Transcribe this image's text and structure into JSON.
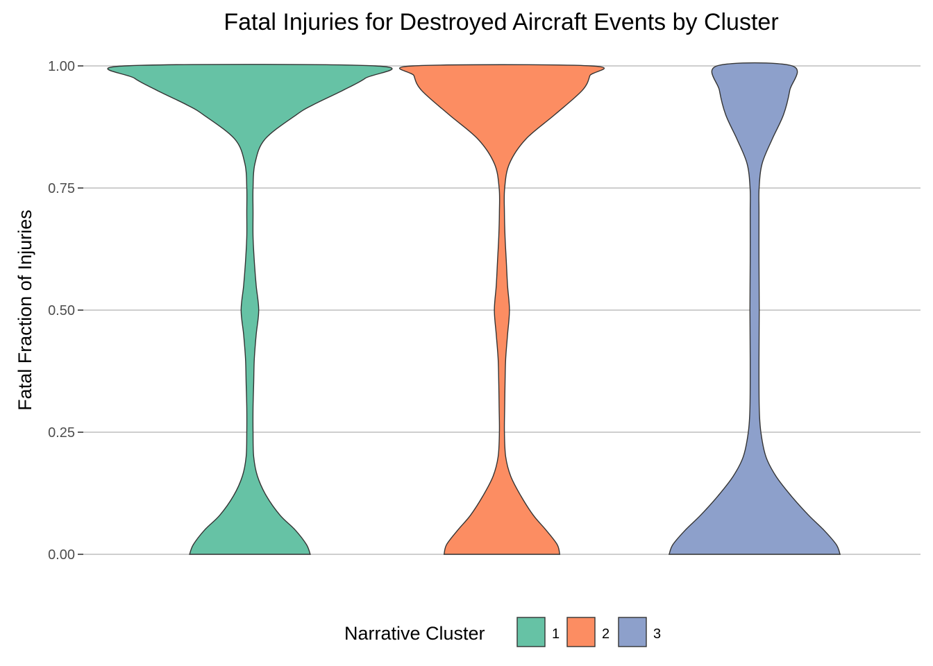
{
  "chart_data": {
    "type": "violin",
    "title": "Fatal Injuries for Destroyed Aircraft Events by Cluster",
    "xlabel": "",
    "ylabel": "Fatal Fraction of Injuries",
    "ylim": [
      0,
      1
    ],
    "yticks": [
      {
        "value": 0.0,
        "label": "0.00"
      },
      {
        "value": 0.25,
        "label": "0.25"
      },
      {
        "value": 0.5,
        "label": "0.50"
      },
      {
        "value": 0.75,
        "label": "0.75"
      },
      {
        "value": 1.0,
        "label": "1.00"
      }
    ],
    "grid": "horizontal",
    "legend": {
      "title": "Narrative Cluster",
      "position": "bottom",
      "entries": [
        "1",
        "2",
        "3"
      ]
    },
    "series": [
      {
        "name": "1",
        "color": "#66c2a5",
        "density": [
          [
            0.0,
            0.48
          ],
          [
            0.02,
            0.45
          ],
          [
            0.05,
            0.36
          ],
          [
            0.08,
            0.24
          ],
          [
            0.12,
            0.13
          ],
          [
            0.16,
            0.06
          ],
          [
            0.2,
            0.03
          ],
          [
            0.25,
            0.025
          ],
          [
            0.3,
            0.025
          ],
          [
            0.35,
            0.03
          ],
          [
            0.4,
            0.035
          ],
          [
            0.45,
            0.05
          ],
          [
            0.5,
            0.07
          ],
          [
            0.55,
            0.05
          ],
          [
            0.6,
            0.035
          ],
          [
            0.65,
            0.025
          ],
          [
            0.7,
            0.025
          ],
          [
            0.75,
            0.025
          ],
          [
            0.8,
            0.04
          ],
          [
            0.85,
            0.12
          ],
          [
            0.9,
            0.37
          ],
          [
            0.92,
            0.5
          ],
          [
            0.95,
            0.74
          ],
          [
            0.975,
            0.92
          ],
          [
            1.0,
            1.0
          ]
        ]
      },
      {
        "name": "2",
        "color": "#fc8d62",
        "density": [
          [
            0.0,
            0.46
          ],
          [
            0.02,
            0.44
          ],
          [
            0.05,
            0.35
          ],
          [
            0.08,
            0.25
          ],
          [
            0.12,
            0.15
          ],
          [
            0.16,
            0.07
          ],
          [
            0.2,
            0.03
          ],
          [
            0.25,
            0.02
          ],
          [
            0.3,
            0.022
          ],
          [
            0.35,
            0.025
          ],
          [
            0.4,
            0.03
          ],
          [
            0.45,
            0.045
          ],
          [
            0.5,
            0.06
          ],
          [
            0.55,
            0.045
          ],
          [
            0.6,
            0.035
          ],
          [
            0.65,
            0.025
          ],
          [
            0.7,
            0.02
          ],
          [
            0.75,
            0.022
          ],
          [
            0.8,
            0.06
          ],
          [
            0.85,
            0.19
          ],
          [
            0.9,
            0.42
          ],
          [
            0.95,
            0.64
          ],
          [
            0.98,
            0.7
          ],
          [
            1.0,
            0.71
          ]
        ]
      },
      {
        "name": "3",
        "color": "#8da0cb",
        "density": [
          [
            0.0,
            0.68
          ],
          [
            0.02,
            0.65
          ],
          [
            0.05,
            0.55
          ],
          [
            0.08,
            0.43
          ],
          [
            0.12,
            0.29
          ],
          [
            0.16,
            0.17
          ],
          [
            0.2,
            0.09
          ],
          [
            0.25,
            0.05
          ],
          [
            0.3,
            0.037
          ],
          [
            0.4,
            0.035
          ],
          [
            0.5,
            0.037
          ],
          [
            0.6,
            0.035
          ],
          [
            0.7,
            0.035
          ],
          [
            0.75,
            0.036
          ],
          [
            0.8,
            0.06
          ],
          [
            0.85,
            0.14
          ],
          [
            0.9,
            0.23
          ],
          [
            0.95,
            0.28
          ],
          [
            1.0,
            0.3
          ]
        ]
      }
    ]
  }
}
